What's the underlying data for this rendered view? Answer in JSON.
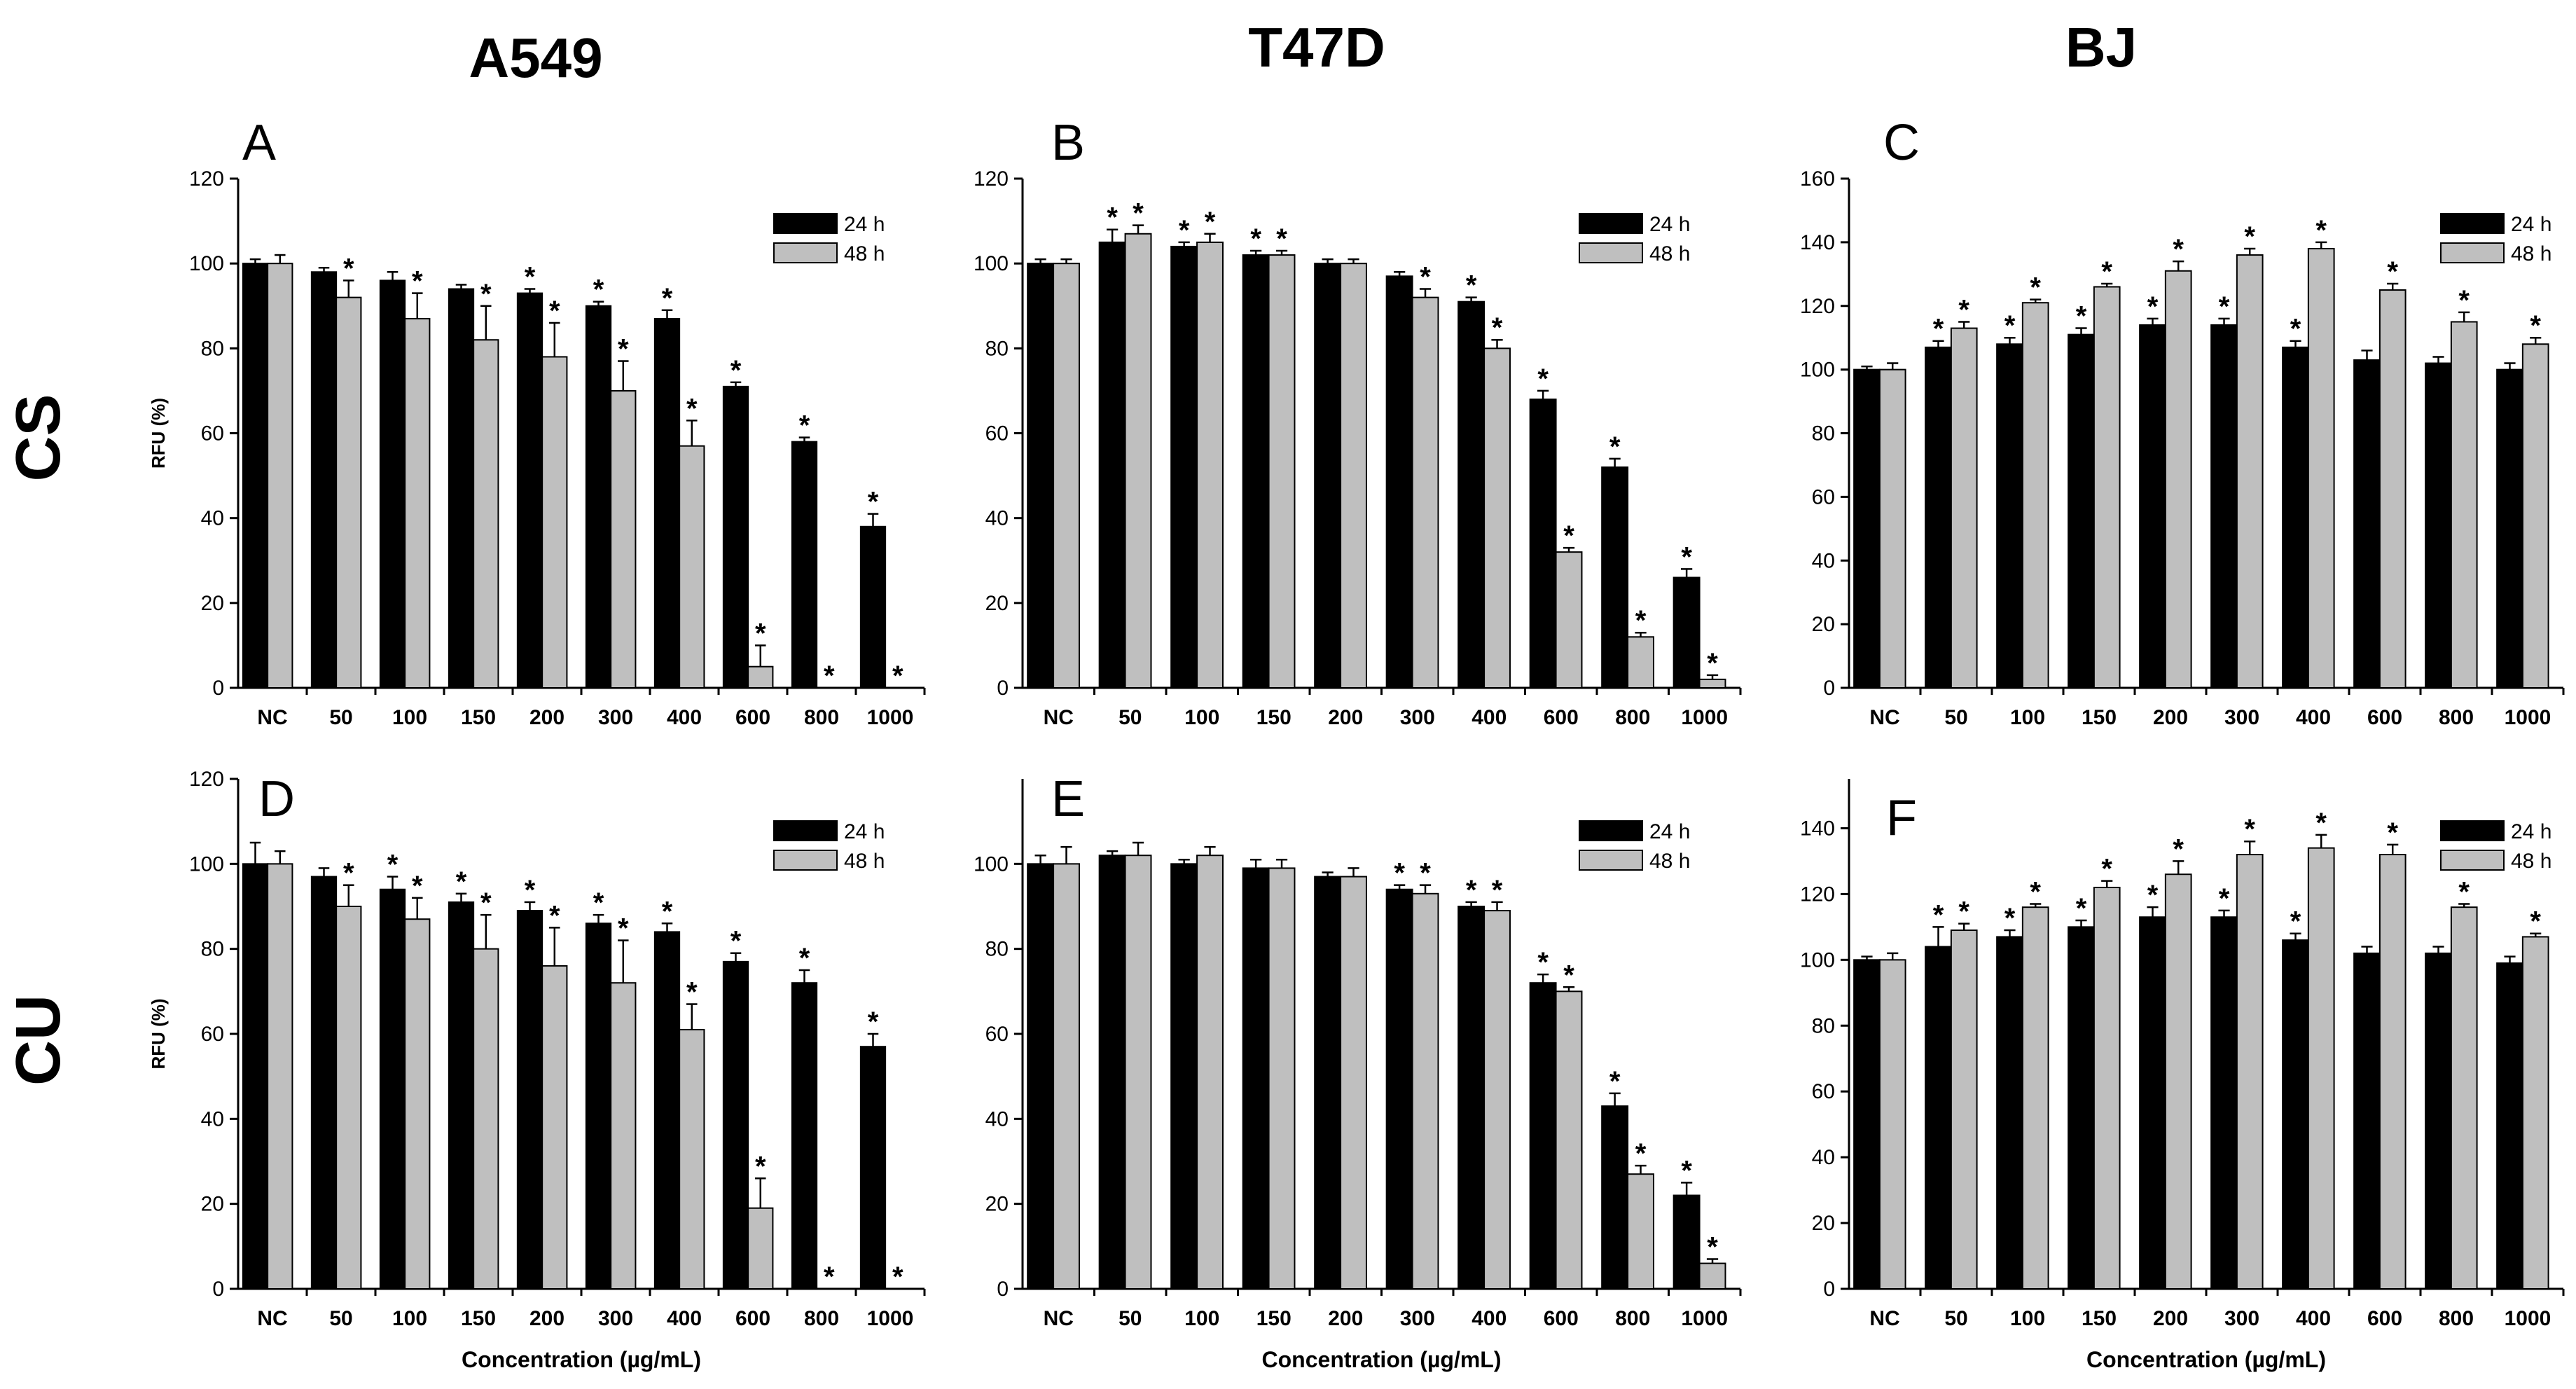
{
  "column_titles": [
    "A549",
    "T47D",
    "BJ"
  ],
  "row_titles": [
    "CS",
    "CU"
  ],
  "shared": {
    "categories": [
      "NC",
      "50",
      "100",
      "150",
      "200",
      "300",
      "400",
      "600",
      "800",
      "1000"
    ],
    "legend": [
      "24 h",
      "48 h"
    ],
    "ylabel": "RFU (%)",
    "xlabel": "Concentration (µg/mL)",
    "colors": {
      "series_24h": "#000000",
      "series_48h": "#bfbfbf",
      "axis": "#000000"
    }
  },
  "chart_data": [
    {
      "type": "bar",
      "panel": "A",
      "cell_line": "A549",
      "treatment": "CS",
      "ylim": [
        0,
        120
      ],
      "yticks": [
        0,
        20,
        40,
        60,
        80,
        100,
        120
      ],
      "show_ylabel": true,
      "show_xlabel": false,
      "categories": [
        "NC",
        "50",
        "100",
        "150",
        "200",
        "300",
        "400",
        "600",
        "800",
        "1000"
      ],
      "series": [
        {
          "name": "24 h",
          "values": [
            100,
            98,
            96,
            94,
            93,
            90,
            87,
            71,
            58,
            38
          ],
          "errors": [
            1,
            1,
            2,
            1,
            1,
            1,
            2,
            1,
            1,
            3
          ],
          "sig": [
            false,
            false,
            false,
            false,
            true,
            true,
            true,
            true,
            true,
            true
          ]
        },
        {
          "name": "48 h",
          "values": [
            100,
            92,
            87,
            82,
            78,
            70,
            57,
            5,
            0,
            0
          ],
          "errors": [
            2,
            4,
            6,
            8,
            8,
            7,
            6,
            5,
            0,
            0
          ],
          "sig": [
            false,
            true,
            true,
            true,
            true,
            true,
            true,
            true,
            true,
            true
          ]
        }
      ]
    },
    {
      "type": "bar",
      "panel": "B",
      "cell_line": "T47D",
      "treatment": "CS",
      "ylim": [
        0,
        120
      ],
      "yticks": [
        0,
        20,
        40,
        60,
        80,
        100,
        120
      ],
      "show_ylabel": false,
      "show_xlabel": false,
      "categories": [
        "NC",
        "50",
        "100",
        "150",
        "200",
        "300",
        "400",
        "600",
        "800",
        "1000"
      ],
      "series": [
        {
          "name": "24 h",
          "values": [
            100,
            105,
            104,
            102,
            100,
            97,
            91,
            68,
            52,
            26
          ],
          "errors": [
            1,
            3,
            1,
            1,
            1,
            1,
            1,
            2,
            2,
            2
          ],
          "sig": [
            false,
            true,
            true,
            true,
            false,
            false,
            true,
            true,
            true,
            true
          ]
        },
        {
          "name": "48 h",
          "values": [
            100,
            107,
            105,
            102,
            100,
            92,
            80,
            32,
            12,
            2
          ],
          "errors": [
            1,
            2,
            2,
            1,
            1,
            2,
            2,
            1,
            1,
            1
          ],
          "sig": [
            false,
            true,
            true,
            true,
            false,
            true,
            true,
            true,
            true,
            true
          ]
        }
      ]
    },
    {
      "type": "bar",
      "panel": "C",
      "cell_line": "BJ",
      "treatment": "CS",
      "ylim": [
        0,
        160
      ],
      "yticks": [
        0,
        20,
        40,
        60,
        80,
        100,
        120,
        140,
        160
      ],
      "show_ylabel": false,
      "show_xlabel": false,
      "categories": [
        "NC",
        "50",
        "100",
        "150",
        "200",
        "300",
        "400",
        "600",
        "800",
        "1000"
      ],
      "series": [
        {
          "name": "24 h",
          "values": [
            100,
            107,
            108,
            111,
            114,
            114,
            107,
            103,
            102,
            100
          ],
          "errors": [
            1,
            2,
            2,
            2,
            2,
            2,
            2,
            3,
            2,
            2
          ],
          "sig": [
            false,
            true,
            true,
            true,
            true,
            true,
            true,
            false,
            false,
            false
          ]
        },
        {
          "name": "48 h",
          "values": [
            100,
            113,
            121,
            126,
            131,
            136,
            138,
            125,
            115,
            108
          ],
          "errors": [
            2,
            2,
            1,
            1,
            3,
            2,
            2,
            2,
            3,
            2
          ],
          "sig": [
            false,
            true,
            true,
            true,
            true,
            true,
            true,
            true,
            true,
            true
          ]
        }
      ]
    },
    {
      "type": "bar",
      "panel": "D",
      "cell_line": "A549",
      "treatment": "CU",
      "ylim": [
        0,
        120
      ],
      "yticks": [
        0,
        20,
        40,
        60,
        80,
        100,
        120
      ],
      "show_ylabel": true,
      "show_xlabel": true,
      "categories": [
        "NC",
        "50",
        "100",
        "150",
        "200",
        "300",
        "400",
        "600",
        "800",
        "1000"
      ],
      "series": [
        {
          "name": "24 h",
          "values": [
            100,
            97,
            94,
            91,
            89,
            86,
            84,
            77,
            72,
            57
          ],
          "errors": [
            5,
            2,
            3,
            2,
            2,
            2,
            2,
            2,
            3,
            3
          ],
          "sig": [
            false,
            false,
            true,
            true,
            true,
            true,
            true,
            true,
            true,
            true
          ]
        },
        {
          "name": "48 h",
          "values": [
            100,
            90,
            87,
            80,
            76,
            72,
            61,
            19,
            0,
            0
          ],
          "errors": [
            3,
            5,
            5,
            8,
            9,
            10,
            6,
            7,
            0,
            0
          ],
          "sig": [
            false,
            true,
            true,
            true,
            true,
            true,
            true,
            true,
            true,
            true
          ]
        }
      ]
    },
    {
      "type": "bar",
      "panel": "E",
      "cell_line": "T47D",
      "treatment": "CU",
      "ylim": [
        0,
        120
      ],
      "yticks": [
        0,
        20,
        40,
        60,
        80,
        100
      ],
      "show_ylabel": false,
      "show_xlabel": true,
      "categories": [
        "NC",
        "50",
        "100",
        "150",
        "200",
        "300",
        "400",
        "600",
        "800",
        "1000"
      ],
      "series": [
        {
          "name": "24 h",
          "values": [
            100,
            102,
            100,
            99,
            97,
            94,
            90,
            72,
            43,
            22
          ],
          "errors": [
            2,
            1,
            1,
            2,
            1,
            1,
            1,
            2,
            3,
            3
          ],
          "sig": [
            false,
            false,
            false,
            false,
            false,
            true,
            true,
            true,
            true,
            true
          ]
        },
        {
          "name": "48 h",
          "values": [
            100,
            102,
            102,
            99,
            97,
            93,
            89,
            70,
            27,
            6
          ],
          "errors": [
            4,
            3,
            2,
            2,
            2,
            2,
            2,
            1,
            2,
            1
          ],
          "sig": [
            false,
            false,
            false,
            false,
            false,
            true,
            true,
            true,
            true,
            true
          ]
        }
      ]
    },
    {
      "type": "bar",
      "panel": "F",
      "cell_line": "BJ",
      "treatment": "CU",
      "ylim": [
        0,
        155
      ],
      "yticks": [
        0,
        20,
        40,
        60,
        80,
        100,
        120,
        140
      ],
      "show_ylabel": false,
      "show_xlabel": true,
      "categories": [
        "NC",
        "50",
        "100",
        "150",
        "200",
        "300",
        "400",
        "600",
        "800",
        "1000"
      ],
      "series": [
        {
          "name": "24 h",
          "values": [
            100,
            104,
            107,
            110,
            113,
            113,
            106,
            102,
            102,
            99
          ],
          "errors": [
            1,
            6,
            2,
            2,
            3,
            2,
            2,
            2,
            2,
            2
          ],
          "sig": [
            false,
            true,
            true,
            true,
            true,
            true,
            true,
            false,
            false,
            false
          ]
        },
        {
          "name": "48 h",
          "values": [
            100,
            109,
            116,
            122,
            126,
            132,
            134,
            132,
            116,
            107
          ],
          "errors": [
            2,
            2,
            1,
            2,
            4,
            4,
            4,
            3,
            1,
            1
          ],
          "sig": [
            false,
            true,
            true,
            true,
            true,
            true,
            true,
            true,
            true,
            true
          ]
        }
      ]
    }
  ]
}
